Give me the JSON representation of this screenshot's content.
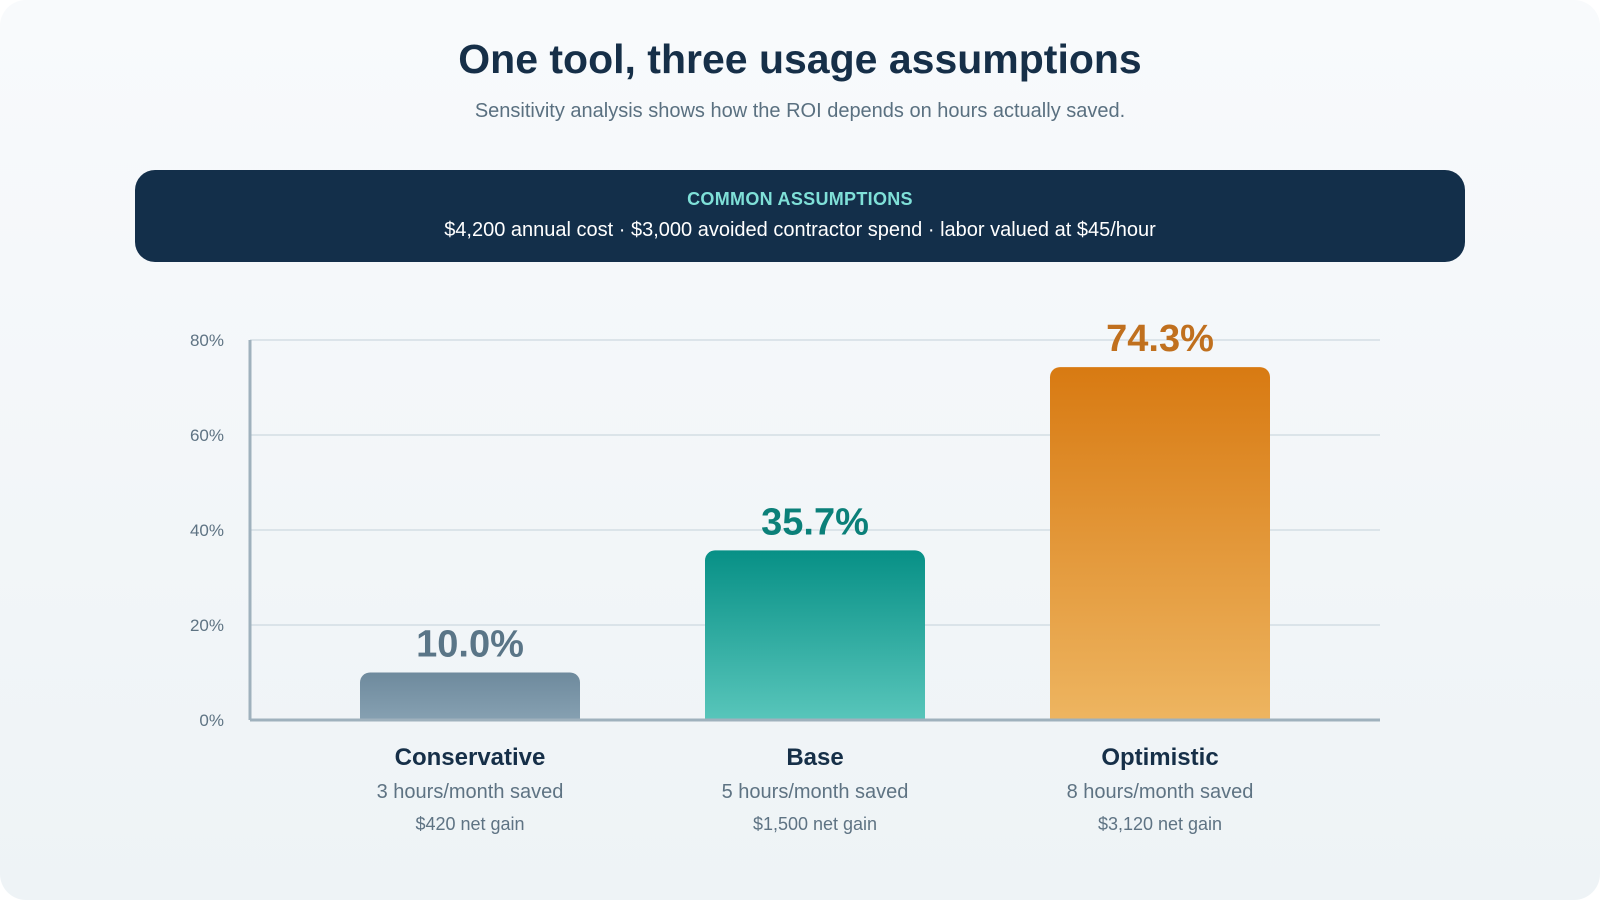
{
  "header": {
    "title": "One tool, three usage assumptions",
    "subtitle": "Sensitivity analysis shows how the ROI depends on hours actually saved."
  },
  "assumptions": {
    "heading": "COMMON ASSUMPTIONS",
    "text": "$4,200 annual cost · $3,000 avoided contractor spend · labor valued at $45/hour"
  },
  "colors": {
    "conservative": [
      "#8aa4b5",
      "#6e8a9d"
    ],
    "base": [
      "#5cc8bd",
      "#079086"
    ],
    "optimistic": [
      "#eeb662",
      "#d87a12"
    ],
    "conservative_label": "#5a7587",
    "base_label": "#0b8079",
    "optimistic_label": "#c0701e"
  },
  "chart_data": {
    "type": "bar",
    "categories": [
      "Conservative",
      "Base",
      "Optimistic"
    ],
    "values": [
      10.0,
      35.7,
      74.3
    ],
    "value_labels": [
      "10.0%",
      "35.7%",
      "74.3%"
    ],
    "category_details": [
      "3 hours/month saved",
      "5 hours/month saved",
      "8 hours/month saved"
    ],
    "category_notes": [
      "$420 net gain",
      "$1,500 net gain",
      "$3,120 net gain"
    ],
    "y_ticks": [
      0,
      20,
      40,
      60,
      80
    ],
    "y_tick_labels": [
      "0%",
      "20%",
      "40%",
      "60%",
      "80%"
    ],
    "ylim": [
      0,
      80
    ],
    "grid": true,
    "legend": "none"
  }
}
